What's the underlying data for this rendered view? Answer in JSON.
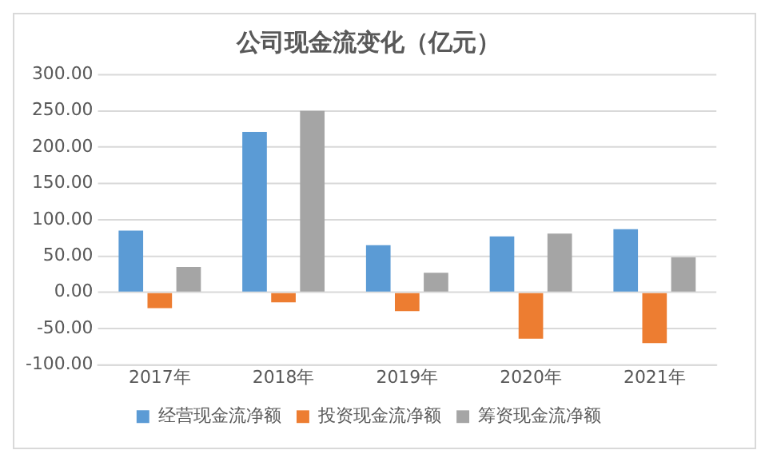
{
  "chart_data": {
    "type": "bar",
    "title": "公司现金流变化（亿元）",
    "categories": [
      "2017年",
      "2018年",
      "2019年",
      "2020年",
      "2021年"
    ],
    "series": [
      {
        "name": "经营现金流净额",
        "color": "#5b9bd5",
        "values": [
          85,
          221,
          65,
          77,
          87
        ]
      },
      {
        "name": "投资现金流净额",
        "color": "#ed7d31",
        "values": [
          -22,
          -14,
          -26,
          -64,
          -70
        ]
      },
      {
        "name": "筹资现金流净额",
        "color": "#a5a5a5",
        "values": [
          35,
          250,
          27,
          81,
          48
        ]
      }
    ],
    "ylim": [
      -100,
      300
    ],
    "yticks": [
      {
        "value": -100,
        "label": "-100.00"
      },
      {
        "value": -50,
        "label": "-50.00"
      },
      {
        "value": 0,
        "label": "0.00"
      },
      {
        "value": 50,
        "label": "50.00"
      },
      {
        "value": 100,
        "label": "100.00"
      },
      {
        "value": 150,
        "label": "150.00"
      },
      {
        "value": 200,
        "label": "200.00"
      },
      {
        "value": 250,
        "label": "250.00"
      },
      {
        "value": 300,
        "label": "300.00"
      }
    ],
    "grid": "y",
    "legend": "bottom"
  }
}
